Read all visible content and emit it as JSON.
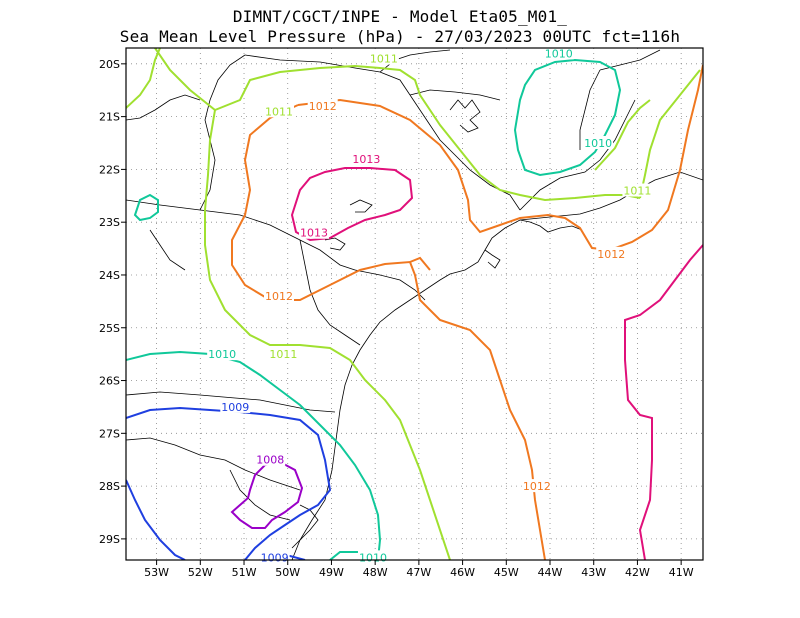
{
  "title": {
    "line1": "DIMNT/CGCT/INPE -  Model Eta05_M01_",
    "line2": "Sea Mean Level Pressure (hPa) - 27/03/2023 00UTC fct=116h"
  },
  "axes": {
    "x_ticks": [
      "53W",
      "52W",
      "51W",
      "50W",
      "49W",
      "48W",
      "47W",
      "46W",
      "45W",
      "44W",
      "43W",
      "42W",
      "41W"
    ],
    "y_ticks": [
      "20S",
      "21S",
      "22S",
      "23S",
      "24S",
      "25S",
      "26S",
      "27S",
      "28S",
      "29S"
    ],
    "x_range": [
      -53.7,
      -40.5
    ],
    "y_range": [
      -29.4,
      -19.7
    ],
    "grid": "dotted"
  },
  "contours": [
    {
      "level": "1008",
      "color": "#9a00c8",
      "labels": [
        {
          "text": "1008",
          "lon": -50.4,
          "lat": -27.5
        }
      ]
    },
    {
      "level": "1009",
      "color": "#1f3fe0",
      "labels": [
        {
          "text": "1009",
          "lon": -51.2,
          "lat": -26.5
        },
        {
          "text": "1009",
          "lon": -50.3,
          "lat": -29.35
        }
      ]
    },
    {
      "level": "1010",
      "color": "#10c89a",
      "labels": [
        {
          "text": "1010",
          "lon": -51.5,
          "lat": -25.5
        },
        {
          "text": "1010",
          "lon": -48.05,
          "lat": -29.35
        },
        {
          "text": "1010",
          "lon": -43.8,
          "lat": -19.8
        },
        {
          "text": "1010",
          "lon": -42.9,
          "lat": -21.5
        }
      ]
    },
    {
      "level": "1011",
      "color": "#a0e030",
      "labels": [
        {
          "text": "1011",
          "lon": -50.2,
          "lat": -20.9
        },
        {
          "text": "1011",
          "lon": -47.8,
          "lat": -19.9
        },
        {
          "text": "1011",
          "lon": -50.1,
          "lat": -25.5
        },
        {
          "text": "1011",
          "lon": -42.0,
          "lat": -22.4
        }
      ]
    },
    {
      "level": "1012",
      "color": "#f07820",
      "labels": [
        {
          "text": "1012",
          "lon": -49.2,
          "lat": -20.8
        },
        {
          "text": "1012",
          "lon": -50.2,
          "lat": -24.4
        },
        {
          "text": "1012",
          "lon": -42.6,
          "lat": -23.6
        },
        {
          "text": "1012",
          "lon": -44.3,
          "lat": -28.0
        }
      ]
    },
    {
      "level": "1013",
      "color": "#e0107a",
      "labels": [
        {
          "text": "1013",
          "lon": -48.2,
          "lat": -21.8
        },
        {
          "text": "1013",
          "lon": -49.4,
          "lat": -23.2
        }
      ]
    }
  ]
}
